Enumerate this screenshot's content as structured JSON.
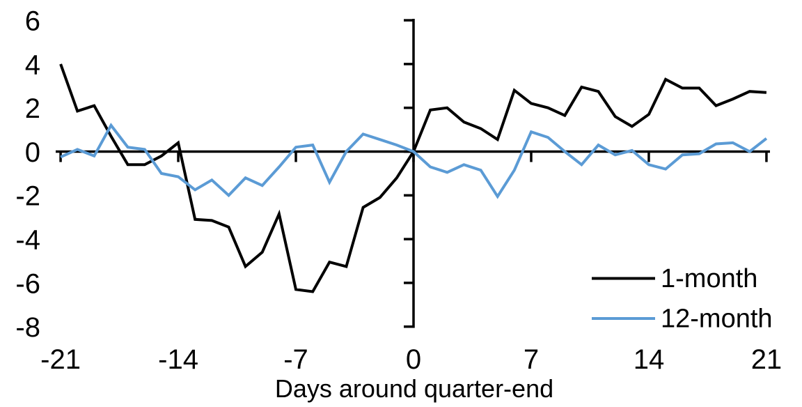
{
  "chart_data": {
    "type": "line",
    "title": "",
    "xlabel": "Days around quarter-end",
    "ylabel": "",
    "xlim": [
      -21,
      21
    ],
    "ylim": [
      -8,
      6
    ],
    "grid": false,
    "legend_position": "inside-bottom-right",
    "xticks": [
      -21,
      -14,
      -7,
      0,
      7,
      14,
      21
    ],
    "yticks": [
      6,
      4,
      2,
      0,
      -2,
      -4,
      -6,
      -8
    ],
    "x": [
      -21,
      -20,
      -19,
      -18,
      -17,
      -16,
      -15,
      -14,
      -13,
      -12,
      -11,
      -10,
      -9,
      -8,
      -7,
      -6,
      -5,
      -4,
      -3,
      -2,
      -1,
      0,
      1,
      2,
      3,
      4,
      5,
      6,
      7,
      8,
      9,
      10,
      11,
      12,
      13,
      14,
      15,
      16,
      17,
      18,
      19,
      20,
      21
    ],
    "series": [
      {
        "name": "1-month",
        "color": "#000000",
        "values": [
          4.0,
          1.85,
          2.1,
          0.7,
          -0.6,
          -0.6,
          -0.2,
          0.4,
          -3.1,
          -3.15,
          -3.45,
          -5.25,
          -4.6,
          -2.85,
          -6.3,
          -6.4,
          -5.05,
          -5.25,
          -2.55,
          -2.1,
          -1.2,
          0.0,
          1.9,
          2.0,
          1.35,
          1.05,
          0.55,
          2.8,
          2.2,
          2.0,
          1.65,
          2.95,
          2.75,
          1.6,
          1.15,
          1.7,
          3.3,
          2.9,
          2.9,
          2.1,
          2.4,
          2.75,
          2.7
        ]
      },
      {
        "name": "12-month",
        "color": "#5B9BD5",
        "values": [
          -0.25,
          0.1,
          -0.2,
          1.2,
          0.2,
          0.1,
          -1.0,
          -1.15,
          -1.75,
          -1.3,
          -2.0,
          -1.2,
          -1.55,
          -0.7,
          0.2,
          0.3,
          -1.4,
          0.0,
          0.8,
          0.55,
          0.3,
          0.0,
          -0.7,
          -0.95,
          -0.6,
          -0.85,
          -2.05,
          -0.85,
          0.9,
          0.65,
          0.0,
          -0.6,
          0.3,
          -0.15,
          0.05,
          -0.6,
          -0.8,
          -0.15,
          -0.1,
          0.35,
          0.4,
          0.0,
          0.6
        ]
      }
    ]
  }
}
